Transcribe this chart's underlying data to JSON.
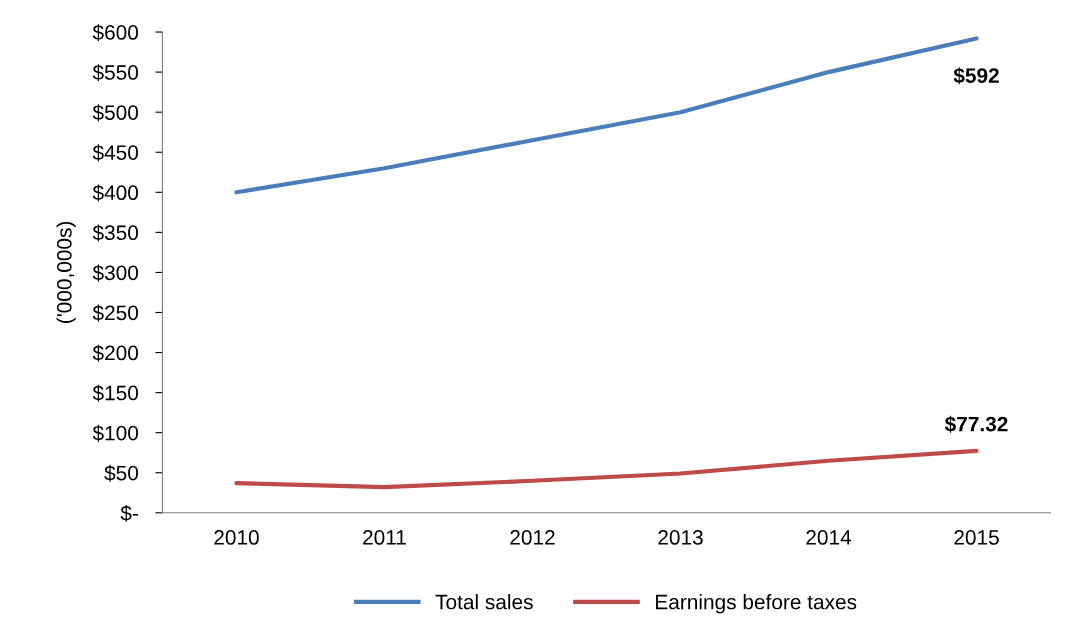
{
  "chart_data": {
    "type": "line",
    "ylabel": "('000,000s)",
    "categories": [
      "2010",
      "2011",
      "2012",
      "2013",
      "2014",
      "2015"
    ],
    "series": [
      {
        "name": "Total sales",
        "color": "#4a7ebb",
        "values": [
          400,
          430,
          465,
          500,
          550,
          592
        ]
      },
      {
        "name": "Earnings before taxes",
        "color": "#be4b48",
        "values": [
          37,
          32,
          40,
          49,
          65,
          77.32
        ]
      }
    ],
    "ylim": [
      0,
      600
    ],
    "yticks": [
      {
        "value": 0,
        "label": "$-"
      },
      {
        "value": 50,
        "label": "$50"
      },
      {
        "value": 100,
        "label": "$100"
      },
      {
        "value": 150,
        "label": "$150"
      },
      {
        "value": 200,
        "label": "$200"
      },
      {
        "value": 250,
        "label": "$250"
      },
      {
        "value": 300,
        "label": "$300"
      },
      {
        "value": 350,
        "label": "$350"
      },
      {
        "value": 400,
        "label": "$400"
      },
      {
        "value": 450,
        "label": "$450"
      },
      {
        "value": 500,
        "label": "$500"
      },
      {
        "value": 550,
        "label": "$550"
      },
      {
        "value": 600,
        "label": "$600"
      }
    ],
    "annotations": [
      {
        "text": "$592",
        "x": "2015",
        "y": 592
      },
      {
        "text": "$77.32",
        "x": "2015",
        "y": 77.32
      }
    ],
    "grid": false,
    "legend": "bottom",
    "marker": "none",
    "line_style": "solid"
  }
}
